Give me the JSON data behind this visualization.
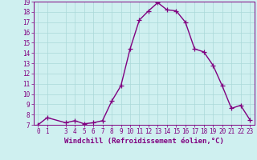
{
  "xlabel": "Windchill (Refroidissement éolien,°C)",
  "x_values": [
    0,
    1,
    3,
    4,
    5,
    6,
    7,
    8,
    9,
    10,
    11,
    12,
    13,
    14,
    15,
    16,
    17,
    18,
    19,
    20,
    21,
    22,
    23
  ],
  "y_values": [
    7.0,
    7.7,
    7.2,
    7.4,
    7.1,
    7.2,
    7.4,
    9.3,
    10.8,
    14.4,
    17.2,
    18.1,
    18.9,
    18.2,
    18.1,
    17.0,
    14.4,
    14.1,
    12.8,
    10.8,
    8.6,
    8.9,
    7.5
  ],
  "ylim": [
    7,
    19
  ],
  "xlim": [
    -0.5,
    23.5
  ],
  "yticks": [
    7,
    8,
    9,
    10,
    11,
    12,
    13,
    14,
    15,
    16,
    17,
    18,
    19
  ],
  "xticks": [
    0,
    1,
    3,
    4,
    5,
    6,
    7,
    8,
    9,
    10,
    11,
    12,
    13,
    14,
    15,
    16,
    17,
    18,
    19,
    20,
    21,
    22,
    23
  ],
  "line_color": "#800080",
  "marker_color": "#800080",
  "bg_color": "#cff0f0",
  "grid_color": "#aad8d8",
  "axis_color": "#800080",
  "tick_color": "#800080",
  "label_color": "#800080",
  "line_width": 1.0,
  "marker_size": 4,
  "font_size_tick": 5.5,
  "font_size_label": 6.5
}
